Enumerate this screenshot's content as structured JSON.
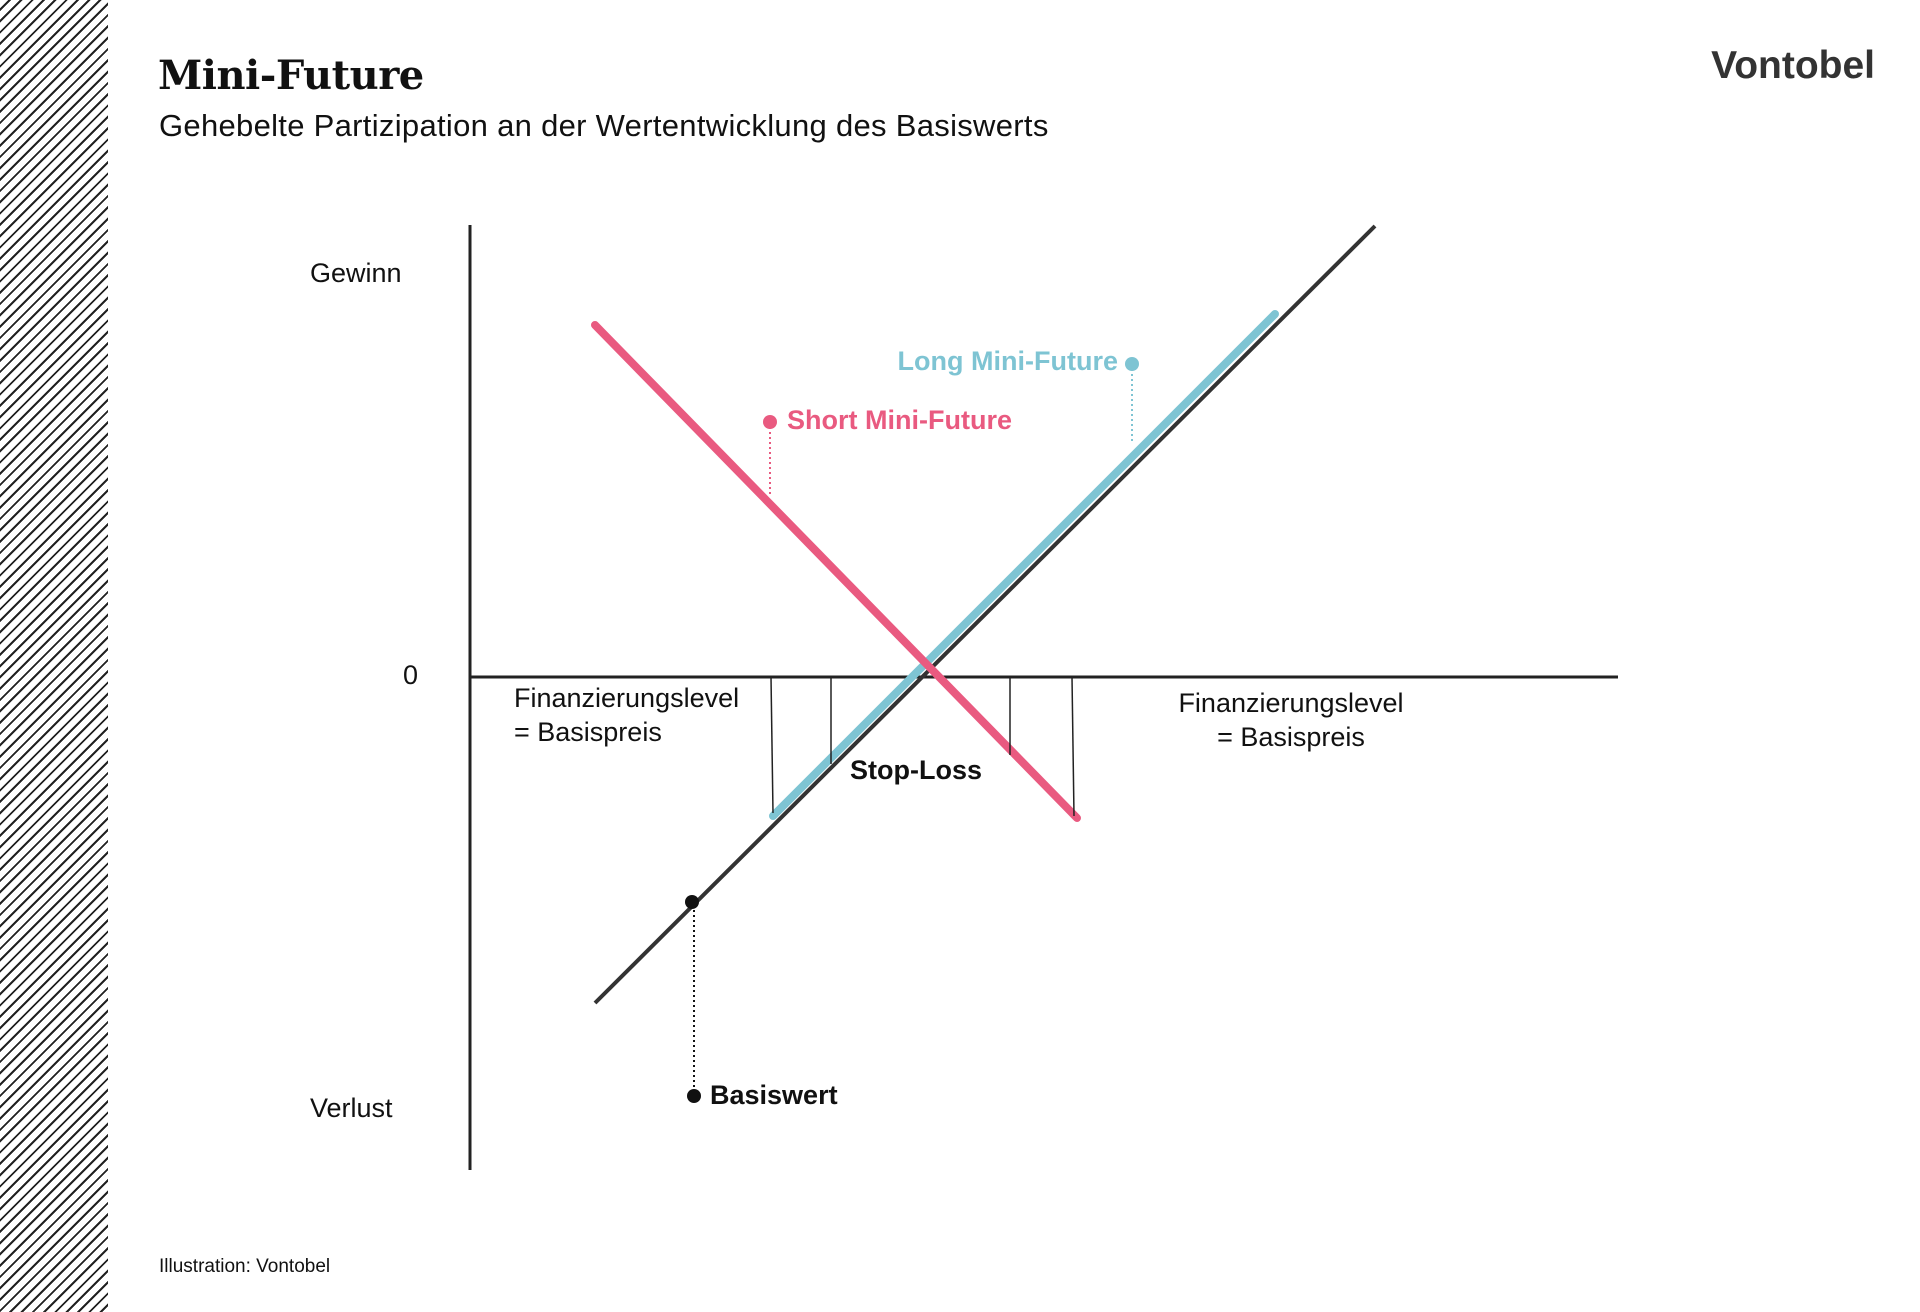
{
  "header": {
    "title": "Mini-Future",
    "subtitle": "Gehebelte Partizipation an der Wertentwicklung des Basiswerts",
    "brand": "Vontobel"
  },
  "diagram": {
    "y_axis": {
      "top_label": "Gewinn",
      "zero_label": "0",
      "bottom_label": "Verlust"
    },
    "labels": {
      "long": "Long Mini-Future",
      "short": "Short Mini-Future",
      "stop_loss": "Stop-Loss",
      "basiswert": "Basiswert",
      "fin_left_line1": "Finanzierungslevel",
      "fin_left_line2": "= Basispreis",
      "fin_right_line1": "Finanzierungslevel",
      "fin_right_line2": "= Basispreis"
    },
    "colors": {
      "long": "#7ec4d3",
      "short": "#e95a80",
      "basiswert": "#333333",
      "axis": "#222222"
    }
  },
  "footer": {
    "caption": "Illustration: Vontobel"
  }
}
